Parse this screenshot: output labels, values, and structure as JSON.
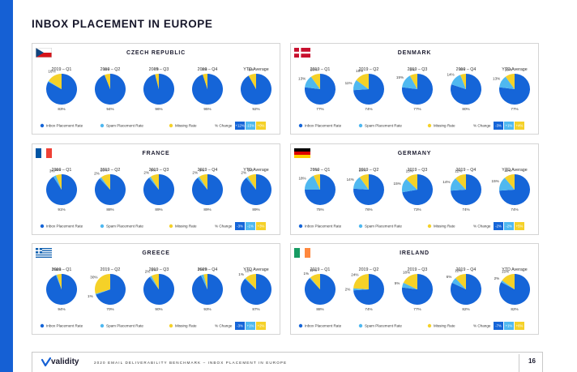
{
  "page": {
    "title": "INBOX PLACEMENT IN EUROPE",
    "footer": {
      "logo": "validity",
      "text": "2020 EMAIL DELIVERABILITY BENCHMARK – INBOX PLACEMENT IN EUROPE",
      "page_number": "16"
    }
  },
  "colors": {
    "inbox": "#1565d8",
    "spam": "#4fb8f0",
    "missing": "#f5d128",
    "change_negative": "#1565d8",
    "change_mid": "#4fb8f0",
    "change_positive": "#f5d128",
    "accent_bar": "#1560d4"
  },
  "legend": {
    "inbox": "Inbox Placement Rate",
    "spam": "Spam Placement Rate",
    "missing": "Missing Rate",
    "change": "% Change"
  },
  "period_labels": [
    "2019 – Q1",
    "2019 – Q2",
    "2019 – Q3",
    "2019 – Q4",
    "YTD Average"
  ],
  "chart_data": [
    {
      "type": "pie",
      "country": "CZECH REPUBLIC",
      "flag": "czech",
      "series_names": [
        "Inbox Placement Rate",
        "Spam Placement Rate",
        "Missing Rate"
      ],
      "periods": [
        {
          "label": "2019 – Q1",
          "inbox": 83,
          "spam": 1,
          "missing": 16,
          "labels": {
            "inbox": "83%",
            "spam": "",
            "missing": "16%"
          }
        },
        {
          "label": "2019 – Q2",
          "inbox": 94,
          "spam": 0,
          "missing": 6,
          "labels": {
            "inbox": "94%",
            "spam": "",
            "missing": "6%"
          }
        },
        {
          "label": "2019 – Q3",
          "inbox": 96,
          "spam": 0,
          "missing": 4,
          "labels": {
            "inbox": "96%",
            "spam": "",
            "missing": "4%"
          }
        },
        {
          "label": "2019 – Q4",
          "inbox": 95,
          "spam": 0,
          "missing": 5,
          "labels": {
            "inbox": "95%",
            "spam": "",
            "missing": "5%"
          }
        },
        {
          "label": "YTD Average",
          "inbox": 92,
          "spam": 0,
          "missing": 8,
          "labels": {
            "inbox": "92%",
            "spam": "",
            "missing": "8%"
          }
        }
      ],
      "change": [
        "+12%",
        "-15%",
        "+0%"
      ]
    },
    {
      "type": "pie",
      "country": "DENMARK",
      "flag": "denmark",
      "series_names": [
        "Inbox Placement Rate",
        "Spam Placement Rate",
        "Missing Rate"
      ],
      "periods": [
        {
          "label": "2019 – Q1",
          "inbox": 77,
          "spam": 13,
          "missing": 10,
          "labels": {
            "inbox": "77%",
            "spam": "13%",
            "missing": "10%"
          }
        },
        {
          "label": "2019 – Q2",
          "inbox": 74,
          "spam": 11,
          "missing": 15,
          "labels": {
            "inbox": "74%",
            "spam": "11%",
            "missing": "15%"
          }
        },
        {
          "label": "2019 – Q3",
          "inbox": 77,
          "spam": 15,
          "missing": 8,
          "labels": {
            "inbox": "77%",
            "spam": "15%",
            "missing": "8%"
          }
        },
        {
          "label": "2019 – Q4",
          "inbox": 80,
          "spam": 14,
          "missing": 6,
          "labels": {
            "inbox": "80%",
            "spam": "14%",
            "missing": "6%"
          }
        },
        {
          "label": "YTD Average",
          "inbox": 77,
          "spam": 13,
          "missing": 10,
          "labels": {
            "inbox": "77%",
            "spam": "13%",
            "missing": "10%"
          }
        }
      ],
      "change": [
        "-3%",
        "+1%",
        "+4%"
      ]
    },
    {
      "type": "pie",
      "country": "FRANCE",
      "flag": "france",
      "series_names": [
        "Inbox Placement Rate",
        "Spam Placement Rate",
        "Missing Rate"
      ],
      "periods": [
        {
          "label": "2019 – Q1",
          "inbox": 91,
          "spam": 3,
          "missing": 6,
          "labels": {
            "inbox": "91%",
            "spam": "3%",
            "missing": "6%"
          }
        },
        {
          "label": "2019 – Q2",
          "inbox": 88,
          "spam": 2,
          "missing": 10,
          "labels": {
            "inbox": "88%",
            "spam": "2%",
            "missing": "10%"
          }
        },
        {
          "label": "2019 – Q3",
          "inbox": 89,
          "spam": 2,
          "missing": 9,
          "labels": {
            "inbox": "89%",
            "spam": "2%",
            "missing": "9%"
          }
        },
        {
          "label": "2019 – Q4",
          "inbox": 89,
          "spam": 2,
          "missing": 9,
          "labels": {
            "inbox": "89%",
            "spam": "2%",
            "missing": "9%"
          }
        },
        {
          "label": "YTD Average",
          "inbox": 89,
          "spam": 2,
          "missing": 9,
          "labels": {
            "inbox": "89%",
            "spam": "2%",
            "missing": "9%"
          }
        }
      ],
      "change": [
        "-3%",
        "-1%",
        "+3%"
      ]
    },
    {
      "type": "pie",
      "country": "GERMANY",
      "flag": "germany",
      "series_names": [
        "Inbox Placement Rate",
        "Spam Placement Rate",
        "Missing Rate"
      ],
      "periods": [
        {
          "label": "2019 – Q1",
          "inbox": 75,
          "spam": 18,
          "missing": 7,
          "labels": {
            "inbox": "75%",
            "spam": "18%",
            "missing": "7%"
          }
        },
        {
          "label": "2019 – Q2",
          "inbox": 76,
          "spam": 14,
          "missing": 10,
          "labels": {
            "inbox": "76%",
            "spam": "14%",
            "missing": "10%"
          }
        },
        {
          "label": "2019 – Q3",
          "inbox": 73,
          "spam": 15,
          "missing": 13,
          "labels": {
            "inbox": "73%",
            "spam": "15%",
            "missing": "13%"
          }
        },
        {
          "label": "2019 – Q4",
          "inbox": 74,
          "spam": 14,
          "missing": 12,
          "labels": {
            "inbox": "74%",
            "spam": "14%",
            "missing": "12%"
          }
        },
        {
          "label": "YTD Average",
          "inbox": 74,
          "spam": 15,
          "missing": 11,
          "labels": {
            "inbox": "74%",
            "spam": "15%",
            "missing": "11%"
          }
        }
      ],
      "change": [
        "-2%",
        "-2%",
        "+5%"
      ]
    },
    {
      "type": "pie",
      "country": "GREECE",
      "flag": "greece",
      "series_names": [
        "Inbox Placement Rate",
        "Spam Placement Rate",
        "Missing Rate"
      ],
      "periods": [
        {
          "label": "2019 – Q1",
          "inbox": 94,
          "spam": 1,
          "missing": 5,
          "labels": {
            "inbox": "94%",
            "spam": "1%",
            "missing": "5%"
          }
        },
        {
          "label": "2019 – Q2",
          "inbox": 70,
          "spam": 1,
          "missing": 30,
          "labels": {
            "inbox": "70%",
            "spam": "1%",
            "missing": "30%"
          }
        },
        {
          "label": "2019 – Q3",
          "inbox": 90,
          "spam": 2,
          "missing": 8,
          "labels": {
            "inbox": "90%",
            "spam": "2%",
            "missing": "8%"
          }
        },
        {
          "label": "2019 – Q4",
          "inbox": 93,
          "spam": 3,
          "missing": 4,
          "labels": {
            "inbox": "93%",
            "spam": "3%",
            "missing": "4%"
          }
        },
        {
          "label": "YTD Average",
          "inbox": 87,
          "spam": 1,
          "missing": 12,
          "labels": {
            "inbox": "87%",
            "spam": "1%",
            "missing": "12%"
          }
        }
      ],
      "change": [
        "-3%",
        "+1%",
        "+2%"
      ]
    },
    {
      "type": "pie",
      "country": "IRELAND",
      "flag": "ireland",
      "series_names": [
        "Inbox Placement Rate",
        "Spam Placement Rate",
        "Missing Rate"
      ],
      "periods": [
        {
          "label": "2019 – Q1",
          "inbox": 88,
          "spam": 1,
          "missing": 11,
          "labels": {
            "inbox": "88%",
            "spam": "1%",
            "missing": "11%"
          }
        },
        {
          "label": "2019 – Q2",
          "inbox": 74,
          "spam": 2,
          "missing": 24,
          "labels": {
            "inbox": "74%",
            "spam": "2%",
            "missing": "24%"
          }
        },
        {
          "label": "2019 – Q3",
          "inbox": 77,
          "spam": 5,
          "missing": 18,
          "labels": {
            "inbox": "77%",
            "spam": "5%",
            "missing": "18%"
          }
        },
        {
          "label": "2019 – Q4",
          "inbox": 82,
          "spam": 6,
          "missing": 12,
          "labels": {
            "inbox": "82%",
            "spam": "6%",
            "missing": "12%"
          }
        },
        {
          "label": "YTD Average",
          "inbox": 82,
          "spam": 2,
          "missing": 15,
          "labels": {
            "inbox": "82%",
            "spam": "2%",
            "missing": "15%"
          }
        }
      ],
      "change": [
        "-7%",
        "+1%",
        "+6%"
      ]
    }
  ]
}
